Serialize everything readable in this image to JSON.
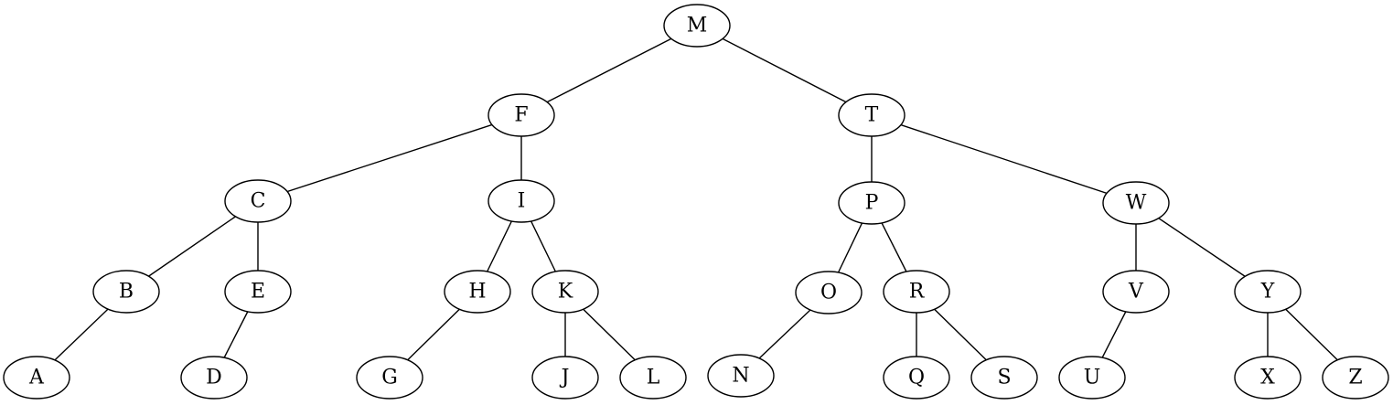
{
  "tree": {
    "nodes": [
      {
        "id": "M",
        "label": "M"
      },
      {
        "id": "F",
        "label": "F"
      },
      {
        "id": "T",
        "label": "T"
      },
      {
        "id": "C",
        "label": "C"
      },
      {
        "id": "I",
        "label": "I"
      },
      {
        "id": "P",
        "label": "P"
      },
      {
        "id": "W",
        "label": "W"
      },
      {
        "id": "B",
        "label": "B"
      },
      {
        "id": "E",
        "label": "E"
      },
      {
        "id": "H",
        "label": "H"
      },
      {
        "id": "K",
        "label": "K"
      },
      {
        "id": "O",
        "label": "O"
      },
      {
        "id": "R",
        "label": "R"
      },
      {
        "id": "V",
        "label": "V"
      },
      {
        "id": "Y",
        "label": "Y"
      },
      {
        "id": "A",
        "label": "A"
      },
      {
        "id": "D",
        "label": "D"
      },
      {
        "id": "G",
        "label": "G"
      },
      {
        "id": "J",
        "label": "J"
      },
      {
        "id": "L",
        "label": "L"
      },
      {
        "id": "N",
        "label": "N"
      },
      {
        "id": "Q",
        "label": "Q"
      },
      {
        "id": "S",
        "label": "S"
      },
      {
        "id": "U",
        "label": "U"
      },
      {
        "id": "X",
        "label": "X"
      },
      {
        "id": "Z",
        "label": "Z"
      }
    ],
    "edges": [
      {
        "from": "M",
        "to": "F"
      },
      {
        "from": "M",
        "to": "T"
      },
      {
        "from": "F",
        "to": "C"
      },
      {
        "from": "F",
        "to": "I"
      },
      {
        "from": "T",
        "to": "P"
      },
      {
        "from": "T",
        "to": "W"
      },
      {
        "from": "C",
        "to": "B"
      },
      {
        "from": "C",
        "to": "E"
      },
      {
        "from": "I",
        "to": "H"
      },
      {
        "from": "I",
        "to": "K"
      },
      {
        "from": "P",
        "to": "O"
      },
      {
        "from": "P",
        "to": "R"
      },
      {
        "from": "W",
        "to": "V"
      },
      {
        "from": "W",
        "to": "Y"
      },
      {
        "from": "B",
        "to": "A"
      },
      {
        "from": "E",
        "to": "D"
      },
      {
        "from": "H",
        "to": "G"
      },
      {
        "from": "K",
        "to": "J"
      },
      {
        "from": "K",
        "to": "L"
      },
      {
        "from": "O",
        "to": "N"
      },
      {
        "from": "R",
        "to": "Q"
      },
      {
        "from": "R",
        "to": "S"
      },
      {
        "from": "V",
        "to": "U"
      },
      {
        "from": "Y",
        "to": "X"
      },
      {
        "from": "Y",
        "to": "Z"
      }
    ]
  }
}
